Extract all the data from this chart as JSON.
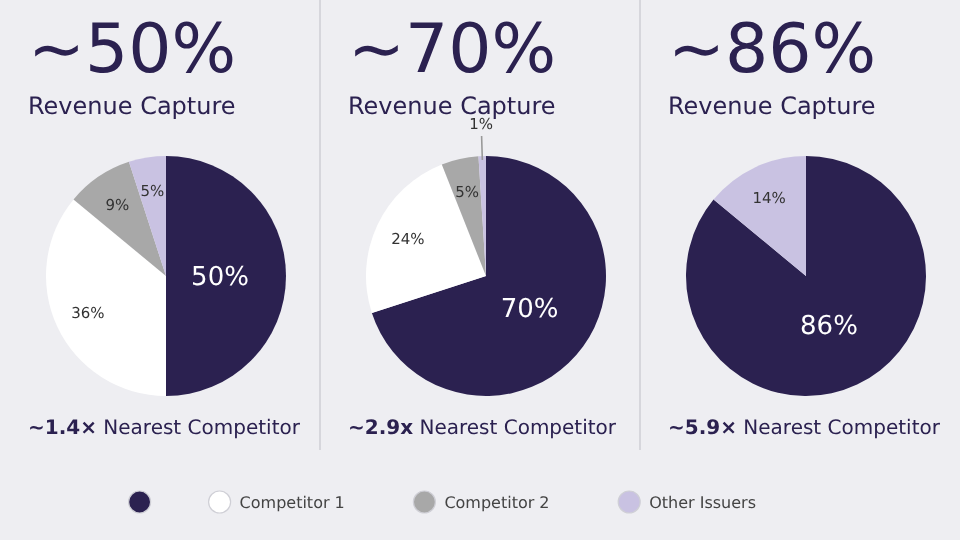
{
  "chart_data": [
    {
      "type": "pie",
      "title": "~50%",
      "subtitle": "Revenue Capture",
      "categories": [
        null,
        "Competitor 1",
        "Competitor 2",
        "Other Issuers"
      ],
      "values": [
        50,
        36,
        9,
        5
      ],
      "colors": [
        "#2b2150",
        "#ffffff",
        "#a8a8a8",
        "#c9c2e2"
      ],
      "value_labels": [
        "50%",
        "36%",
        "9%",
        "5%"
      ],
      "legend": "bottom",
      "annotations": [
        "~1.4× Nearest Competitor"
      ]
    },
    {
      "type": "pie",
      "title": "~70%",
      "subtitle": "Revenue Capture",
      "categories": [
        null,
        null,
        null,
        null
      ],
      "values": [
        70,
        24,
        5,
        1
      ],
      "colors": [
        "#2b2150",
        "#ffffff",
        "#a8a8a8",
        "#c9c2e2"
      ],
      "value_labels": [
        "70%",
        "24%",
        "5%",
        "1%"
      ],
      "annotations": [
        "~2.9x Nearest Competitor"
      ]
    },
    {
      "type": "pie",
      "title": "~86%",
      "subtitle": "Revenue Capture",
      "categories": [
        null,
        null
      ],
      "values": [
        86,
        14
      ],
      "colors": [
        "#2b2150",
        "#c9c2e2"
      ],
      "value_labels": [
        "86%",
        "14%"
      ],
      "annotations": [
        "~5.9× Nearest Competitor"
      ]
    }
  ]
}
